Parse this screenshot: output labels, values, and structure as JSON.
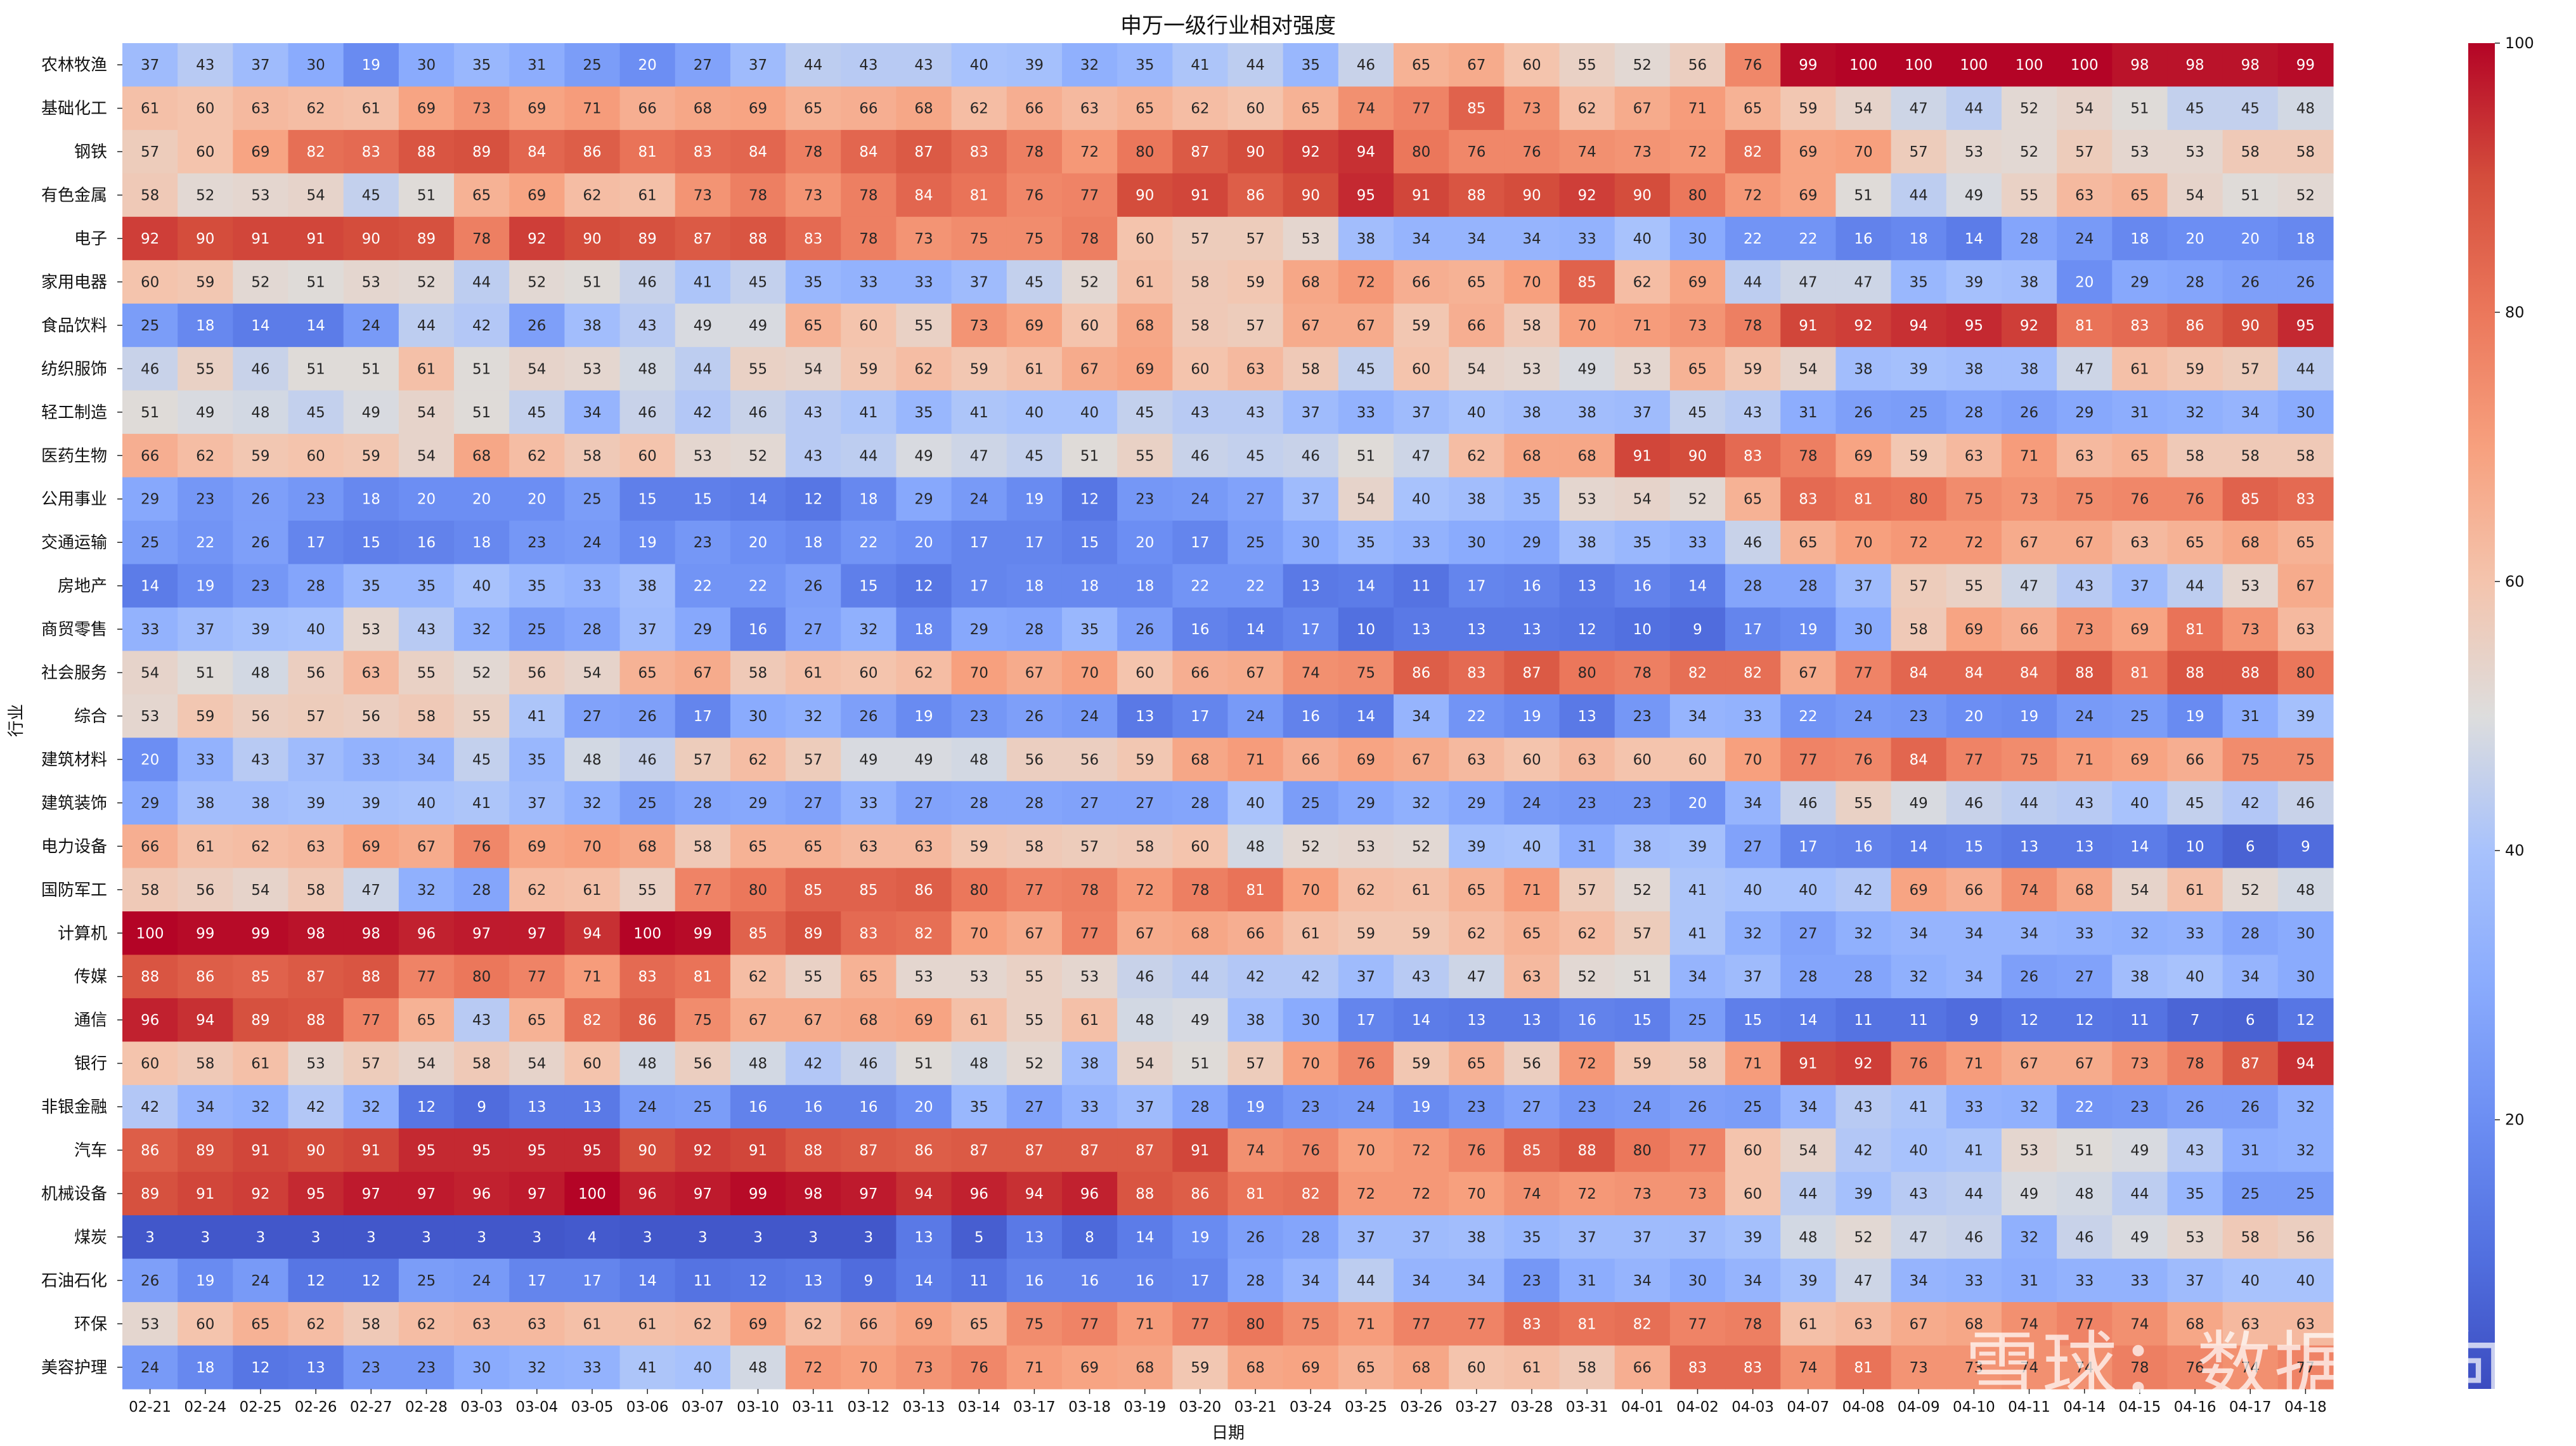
{
  "chart_data": {
    "type": "heatmap",
    "title": "申万一级行业相对强度",
    "xlabel": "日期",
    "ylabel": "行业",
    "colormap": "coolwarm",
    "vmin": 0,
    "vmax": 100,
    "colorbar_ticks": [
      20,
      40,
      60,
      80,
      100
    ],
    "x": [
      "02-21",
      "02-24",
      "02-25",
      "02-26",
      "02-27",
      "02-28",
      "03-03",
      "03-04",
      "03-05",
      "03-06",
      "03-07",
      "03-10",
      "03-11",
      "03-12",
      "03-13",
      "03-14",
      "03-17",
      "03-18",
      "03-19",
      "03-20",
      "03-21",
      "03-24",
      "03-25",
      "03-26",
      "03-27",
      "03-28",
      "03-31",
      "04-01",
      "04-02",
      "04-03",
      "04-07",
      "04-08",
      "04-09",
      "04-10",
      "04-11",
      "04-14",
      "04-15",
      "04-16",
      "04-17",
      "04-18"
    ],
    "y": [
      "农林牧渔",
      "基础化工",
      "钢铁",
      "有色金属",
      "电子",
      "家用电器",
      "食品饮料",
      "纺织服饰",
      "轻工制造",
      "医药生物",
      "公用事业",
      "交通运输",
      "房地产",
      "商贸零售",
      "社会服务",
      "综合",
      "建筑材料",
      "建筑装饰",
      "电力设备",
      "国防军工",
      "计算机",
      "传媒",
      "通信",
      "银行",
      "非银金融",
      "汽车",
      "机械设备",
      "煤炭",
      "石油石化",
      "环保",
      "美容护理"
    ],
    "values": [
      [
        37,
        43,
        37,
        30,
        19,
        30,
        35,
        31,
        25,
        20,
        27,
        37,
        44,
        43,
        43,
        40,
        39,
        32,
        35,
        41,
        44,
        35,
        46,
        65,
        67,
        60,
        55,
        52,
        56,
        76,
        99,
        100,
        100,
        100,
        100,
        100,
        98,
        98,
        98,
        99
      ],
      [
        61,
        60,
        63,
        62,
        61,
        69,
        73,
        69,
        71,
        66,
        68,
        69,
        65,
        66,
        68,
        62,
        66,
        63,
        65,
        62,
        60,
        65,
        74,
        77,
        85,
        73,
        62,
        67,
        71,
        65,
        59,
        54,
        47,
        44,
        52,
        54,
        51,
        45,
        45,
        48
      ],
      [
        57,
        60,
        69,
        82,
        83,
        88,
        89,
        84,
        86,
        81,
        83,
        84,
        78,
        84,
        87,
        83,
        78,
        72,
        80,
        87,
        90,
        92,
        94,
        80,
        76,
        76,
        74,
        73,
        72,
        82,
        69,
        70,
        57,
        53,
        52,
        57,
        53,
        53,
        58,
        58
      ],
      [
        58,
        52,
        53,
        54,
        45,
        51,
        65,
        69,
        62,
        61,
        73,
        78,
        73,
        78,
        84,
        81,
        76,
        77,
        90,
        91,
        86,
        90,
        95,
        91,
        88,
        90,
        92,
        90,
        80,
        72,
        69,
        51,
        44,
        49,
        55,
        63,
        65,
        54,
        51,
        52
      ],
      [
        92,
        90,
        91,
        91,
        90,
        89,
        78,
        92,
        90,
        89,
        87,
        88,
        83,
        78,
        73,
        75,
        75,
        78,
        60,
        57,
        57,
        53,
        38,
        34,
        34,
        34,
        33,
        40,
        30,
        22,
        22,
        16,
        18,
        14,
        28,
        24,
        18,
        20,
        20,
        18
      ],
      [
        60,
        59,
        52,
        51,
        53,
        52,
        44,
        52,
        51,
        46,
        41,
        45,
        35,
        33,
        33,
        37,
        45,
        52,
        61,
        58,
        59,
        68,
        72,
        66,
        65,
        70,
        85,
        62,
        69,
        44,
        47,
        47,
        35,
        39,
        38,
        20,
        29,
        28,
        26,
        26
      ],
      [
        25,
        18,
        14,
        14,
        24,
        44,
        42,
        26,
        38,
        43,
        49,
        49,
        65,
        60,
        55,
        73,
        69,
        60,
        68,
        58,
        57,
        67,
        67,
        59,
        66,
        58,
        70,
        71,
        73,
        78,
        91,
        92,
        94,
        95,
        92,
        81,
        83,
        86,
        90,
        95
      ],
      [
        46,
        55,
        46,
        51,
        51,
        61,
        51,
        54,
        53,
        48,
        44,
        55,
        54,
        59,
        62,
        59,
        61,
        67,
        69,
        60,
        63,
        58,
        45,
        60,
        54,
        53,
        49,
        53,
        65,
        59,
        54,
        38,
        39,
        38,
        38,
        47,
        61,
        59,
        57,
        44
      ],
      [
        51,
        49,
        48,
        45,
        49,
        54,
        51,
        45,
        34,
        46,
        42,
        46,
        43,
        41,
        35,
        41,
        40,
        40,
        45,
        43,
        43,
        37,
        33,
        37,
        40,
        38,
        38,
        37,
        45,
        43,
        31,
        26,
        25,
        28,
        26,
        29,
        31,
        32,
        34,
        30
      ],
      [
        66,
        62,
        59,
        60,
        59,
        54,
        68,
        62,
        58,
        60,
        53,
        52,
        43,
        44,
        49,
        47,
        45,
        51,
        55,
        46,
        45,
        46,
        51,
        47,
        62,
        68,
        68,
        91,
        90,
        83,
        78,
        69,
        59,
        63,
        71,
        63,
        65,
        58,
        58,
        58
      ],
      [
        29,
        23,
        26,
        23,
        18,
        20,
        20,
        20,
        25,
        15,
        15,
        14,
        12,
        18,
        29,
        24,
        19,
        12,
        23,
        24,
        27,
        37,
        54,
        40,
        38,
        35,
        53,
        54,
        52,
        65,
        83,
        81,
        80,
        75,
        73,
        75,
        76,
        76,
        85,
        83
      ],
      [
        25,
        22,
        26,
        17,
        15,
        16,
        18,
        23,
        24,
        19,
        23,
        20,
        18,
        22,
        20,
        17,
        17,
        15,
        20,
        17,
        25,
        30,
        35,
        33,
        30,
        29,
        38,
        35,
        33,
        46,
        65,
        70,
        72,
        72,
        67,
        67,
        63,
        65,
        68,
        65
      ],
      [
        14,
        19,
        23,
        28,
        35,
        35,
        40,
        35,
        33,
        38,
        22,
        22,
        26,
        15,
        12,
        17,
        18,
        18,
        18,
        22,
        22,
        13,
        14,
        11,
        17,
        16,
        13,
        16,
        14,
        28,
        28,
        37,
        57,
        55,
        47,
        43,
        37,
        44,
        53,
        67
      ],
      [
        33,
        37,
        39,
        40,
        53,
        43,
        32,
        25,
        28,
        37,
        29,
        16,
        27,
        32,
        18,
        29,
        28,
        35,
        26,
        16,
        14,
        17,
        10,
        13,
        13,
        13,
        12,
        10,
        9,
        17,
        19,
        30,
        58,
        69,
        66,
        73,
        69,
        81,
        73,
        63
      ],
      [
        54,
        51,
        48,
        56,
        63,
        55,
        52,
        56,
        54,
        65,
        67,
        58,
        61,
        60,
        62,
        70,
        67,
        70,
        60,
        66,
        67,
        74,
        75,
        86,
        83,
        87,
        80,
        78,
        82,
        82,
        67,
        77,
        84,
        84,
        84,
        88,
        81,
        88,
        88,
        80
      ],
      [
        53,
        59,
        56,
        57,
        56,
        58,
        55,
        41,
        27,
        26,
        17,
        30,
        32,
        26,
        19,
        23,
        26,
        24,
        13,
        17,
        24,
        16,
        14,
        34,
        22,
        19,
        13,
        23,
        34,
        33,
        22,
        24,
        23,
        20,
        19,
        24,
        25,
        19,
        31,
        39
      ],
      [
        20,
        33,
        43,
        37,
        33,
        34,
        45,
        35,
        48,
        46,
        57,
        62,
        57,
        49,
        49,
        48,
        56,
        56,
        59,
        68,
        71,
        66,
        69,
        67,
        63,
        60,
        63,
        60,
        60,
        70,
        77,
        76,
        84,
        77,
        75,
        71,
        69,
        66,
        75,
        75
      ],
      [
        29,
        38,
        38,
        39,
        39,
        40,
        41,
        37,
        32,
        25,
        28,
        29,
        27,
        33,
        27,
        28,
        28,
        27,
        27,
        28,
        40,
        25,
        29,
        32,
        29,
        24,
        23,
        23,
        20,
        34,
        46,
        55,
        49,
        46,
        44,
        43,
        40,
        45,
        42,
        46
      ],
      [
        66,
        61,
        62,
        63,
        69,
        67,
        76,
        69,
        70,
        68,
        58,
        65,
        65,
        63,
        63,
        59,
        58,
        57,
        58,
        60,
        48,
        52,
        53,
        52,
        39,
        40,
        31,
        38,
        39,
        27,
        17,
        16,
        14,
        15,
        13,
        13,
        14,
        10,
        6,
        9
      ],
      [
        58,
        56,
        54,
        58,
        47,
        32,
        28,
        62,
        61,
        55,
        77,
        80,
        85,
        85,
        86,
        80,
        77,
        78,
        72,
        78,
        81,
        70,
        62,
        61,
        65,
        71,
        57,
        52,
        41,
        40,
        40,
        42,
        69,
        66,
        74,
        68,
        54,
        61,
        52,
        48
      ],
      [
        100,
        99,
        99,
        98,
        98,
        96,
        97,
        97,
        94,
        100,
        99,
        85,
        89,
        83,
        82,
        70,
        67,
        77,
        67,
        68,
        66,
        61,
        59,
        59,
        62,
        65,
        62,
        57,
        41,
        32,
        27,
        32,
        34,
        34,
        34,
        33,
        32,
        33,
        28,
        30
      ],
      [
        88,
        86,
        85,
        87,
        88,
        77,
        80,
        77,
        71,
        83,
        81,
        62,
        55,
        65,
        53,
        53,
        55,
        53,
        46,
        44,
        42,
        42,
        37,
        43,
        47,
        63,
        52,
        51,
        34,
        37,
        28,
        28,
        32,
        34,
        26,
        27,
        38,
        40,
        34,
        30
      ],
      [
        96,
        94,
        89,
        88,
        77,
        65,
        43,
        65,
        82,
        86,
        75,
        67,
        67,
        68,
        69,
        61,
        55,
        61,
        48,
        49,
        38,
        30,
        17,
        14,
        13,
        13,
        16,
        15,
        25,
        15,
        14,
        11,
        11,
        9,
        12,
        12,
        11,
        7,
        6,
        12
      ],
      [
        60,
        58,
        61,
        53,
        57,
        54,
        58,
        54,
        60,
        48,
        56,
        48,
        42,
        46,
        51,
        48,
        52,
        38,
        54,
        51,
        57,
        70,
        76,
        59,
        65,
        56,
        72,
        59,
        58,
        71,
        91,
        92,
        76,
        71,
        67,
        67,
        73,
        78,
        87,
        94
      ],
      [
        42,
        34,
        32,
        42,
        32,
        12,
        9,
        13,
        13,
        24,
        25,
        16,
        16,
        16,
        20,
        35,
        27,
        33,
        37,
        28,
        19,
        23,
        24,
        19,
        23,
        27,
        23,
        24,
        26,
        25,
        34,
        43,
        41,
        33,
        32,
        22,
        23,
        26,
        26,
        32
      ],
      [
        86,
        89,
        91,
        90,
        91,
        95,
        95,
        95,
        95,
        90,
        92,
        91,
        88,
        87,
        86,
        87,
        87,
        87,
        87,
        91,
        74,
        76,
        70,
        72,
        76,
        85,
        88,
        80,
        77,
        60,
        54,
        42,
        40,
        41,
        53,
        51,
        49,
        43,
        31,
        32
      ],
      [
        89,
        91,
        92,
        95,
        97,
        97,
        96,
        97,
        100,
        96,
        97,
        99,
        98,
        97,
        94,
        96,
        94,
        96,
        88,
        86,
        81,
        82,
        72,
        72,
        70,
        74,
        72,
        73,
        73,
        60,
        44,
        39,
        43,
        44,
        49,
        48,
        44,
        35,
        25,
        25
      ],
      [
        3,
        3,
        3,
        3,
        3,
        3,
        3,
        3,
        4,
        3,
        3,
        3,
        3,
        3,
        13,
        5,
        13,
        8,
        14,
        19,
        26,
        28,
        37,
        37,
        38,
        35,
        37,
        37,
        37,
        39,
        48,
        52,
        47,
        46,
        32,
        46,
        49,
        53,
        58,
        56
      ],
      [
        26,
        19,
        24,
        12,
        12,
        25,
        24,
        17,
        17,
        14,
        11,
        12,
        13,
        9,
        14,
        11,
        16,
        16,
        16,
        17,
        28,
        34,
        44,
        34,
        34,
        23,
        31,
        34,
        30,
        34,
        39,
        47,
        34,
        33,
        31,
        33,
        33,
        37,
        40,
        40
      ],
      [
        53,
        60,
        65,
        62,
        58,
        62,
        63,
        63,
        61,
        61,
        62,
        69,
        62,
        66,
        69,
        65,
        75,
        77,
        71,
        77,
        80,
        75,
        71,
        77,
        77,
        83,
        81,
        82,
        77,
        78,
        61,
        63,
        67,
        68,
        74,
        77,
        74,
        68,
        63,
        63
      ],
      [
        24,
        18,
        12,
        13,
        23,
        23,
        30,
        32,
        33,
        41,
        40,
        48,
        72,
        70,
        73,
        76,
        71,
        69,
        68,
        59,
        68,
        69,
        65,
        68,
        60,
        61,
        58,
        66,
        83,
        83,
        74,
        81,
        73,
        73,
        74,
        74,
        78,
        76,
        74,
        77
      ]
    ]
  },
  "watermark": {
    "text": "雪球：数据方向"
  }
}
